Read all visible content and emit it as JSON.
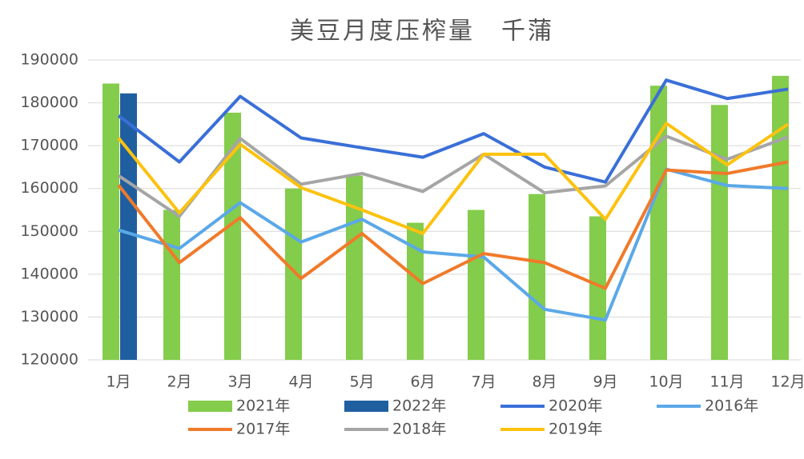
{
  "chart_data": {
    "type": "bar_line",
    "title": "美豆月度压榨量　千蒲",
    "categories": [
      "1月",
      "2月",
      "3月",
      "4月",
      "5月",
      "6月",
      "7月",
      "8月",
      "9月",
      "10月",
      "11月",
      "12月"
    ],
    "ylim": [
      120000,
      190000
    ],
    "yticks": [
      120000,
      130000,
      140000,
      150000,
      160000,
      170000,
      180000,
      190000
    ],
    "grid": true,
    "legend": "bottom",
    "series": [
      {
        "name": "2021年",
        "type": "bar",
        "color": "#84cc4b",
        "values": [
          184500,
          155000,
          177700,
          160000,
          163000,
          152000,
          155000,
          158700,
          153500,
          184000,
          179500,
          186300
        ]
      },
      {
        "name": "2022年",
        "type": "bar",
        "color": "#1f5fa0",
        "values": [
          182200,
          null,
          null,
          null,
          null,
          null,
          null,
          null,
          null,
          null,
          null,
          null
        ]
      },
      {
        "name": "2020年",
        "type": "line",
        "color": "#3a6fd8",
        "values": [
          177000,
          166200,
          181500,
          171800,
          169500,
          167300,
          172800,
          165000,
          161500,
          185300,
          181000,
          183200
        ]
      },
      {
        "name": "2016年",
        "type": "line",
        "color": "#5ba8e8",
        "values": [
          150300,
          146000,
          156700,
          147500,
          152800,
          145200,
          144000,
          131800,
          129300,
          164500,
          160700,
          160000
        ]
      },
      {
        "name": "2017年",
        "type": "line",
        "color": "#f07a2a",
        "values": [
          160800,
          142700,
          153200,
          139000,
          149500,
          137800,
          144800,
          142700,
          136700,
          164300,
          163500,
          166200
        ]
      },
      {
        "name": "2018年",
        "type": "line",
        "color": "#a5a5a5",
        "values": [
          163000,
          153500,
          171700,
          161000,
          163500,
          159300,
          168000,
          159000,
          160600,
          172200,
          166800,
          172000
        ]
      },
      {
        "name": "2019年",
        "type": "line",
        "color": "#fcc20e",
        "values": [
          171800,
          154300,
          170300,
          160200,
          155000,
          149500,
          168000,
          168000,
          152800,
          175200,
          165500,
          175000
        ]
      }
    ]
  }
}
